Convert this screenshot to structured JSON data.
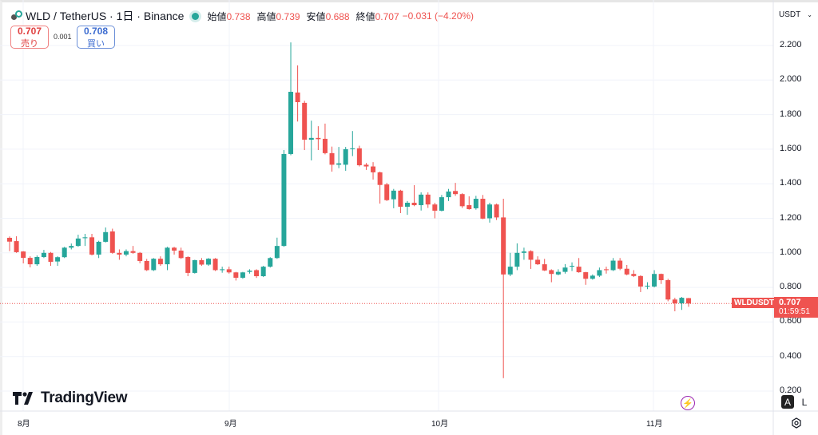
{
  "header": {
    "symbol": "WLD",
    "quote": "TetherUS",
    "interval": "1日",
    "exchange": "Binance",
    "sep1": " / ",
    "sep2": " · ",
    "sep3": " · ",
    "open_label": "始値",
    "open": "0.738",
    "high_label": "高値",
    "high": "0.739",
    "low_label": "安値",
    "low": "0.688",
    "close_label": "終値",
    "close": "0.707",
    "change": "−0.031 (−4.20%)"
  },
  "trade": {
    "sell_price": "0.707",
    "sell_label": "売り",
    "spread": "0.001",
    "buy_price": "0.708",
    "buy_label": "買い"
  },
  "currency_selector": "USDT",
  "price_tag": {
    "symbol": "WLDUSDT",
    "price": "0.707",
    "countdown": "01:59:51"
  },
  "branding": "TradingView",
  "scale_buttons": {
    "auto": "A",
    "log": "L"
  },
  "colors": {
    "up": "#26a69a",
    "down": "#ef5350",
    "accent": "#9c27b0"
  },
  "chart_data": {
    "type": "candlestick",
    "y_ticks": [
      "2.200",
      "2.000",
      "1.800",
      "1.600",
      "1.400",
      "1.200",
      "1.000",
      "0.800",
      "0.600",
      "0.400",
      "0.200"
    ],
    "ylim": [
      0.2,
      2.2
    ],
    "x_ticks": [
      "8月",
      "9月",
      "10月",
      "11月"
    ],
    "grid": true,
    "last_price": 0.707,
    "ohlc": [
      [
        1.087,
        1.095,
        1.01,
        1.065
      ],
      [
        1.068,
        1.096,
        1.0,
        1.004
      ],
      [
        1.008,
        1.01,
        0.939,
        0.971
      ],
      [
        0.971,
        0.98,
        0.916,
        0.934
      ],
      [
        0.934,
        0.985,
        0.925,
        0.976
      ],
      [
        0.976,
        1.017,
        0.97,
        1.0
      ],
      [
        1.0,
        1.005,
        0.925,
        0.948
      ],
      [
        0.95,
        0.98,
        0.925,
        0.975
      ],
      [
        0.975,
        1.035,
        0.97,
        1.03
      ],
      [
        1.03,
        1.054,
        1.02,
        1.04
      ],
      [
        1.04,
        1.105,
        1.035,
        1.083
      ],
      [
        1.085,
        1.11,
        1.04,
        1.09
      ],
      [
        1.09,
        1.11,
        0.985,
        0.99
      ],
      [
        0.99,
        1.07,
        0.97,
        1.064
      ],
      [
        1.064,
        1.147,
        1.06,
        1.12
      ],
      [
        1.124,
        1.14,
        0.995,
        1.0
      ],
      [
        1.0,
        1.02,
        0.96,
        0.99
      ],
      [
        0.99,
        1.02,
        0.98,
        1.01
      ],
      [
        1.01,
        1.04,
        0.995,
        1.0
      ],
      [
        1.0,
        1.005,
        0.94,
        0.953
      ],
      [
        0.953,
        0.965,
        0.895,
        0.9
      ],
      [
        0.9,
        0.97,
        0.895,
        0.966
      ],
      [
        0.966,
        0.98,
        0.925,
        0.934
      ],
      [
        0.934,
        1.035,
        0.9,
        1.03
      ],
      [
        1.03,
        1.035,
        0.99,
        1.013
      ],
      [
        1.013,
        1.03,
        0.965,
        0.97
      ],
      [
        0.976,
        0.98,
        0.865,
        0.884
      ],
      [
        0.884,
        0.96,
        0.88,
        0.958
      ],
      [
        0.958,
        0.97,
        0.925,
        0.932
      ],
      [
        0.932,
        0.97,
        0.925,
        0.966
      ],
      [
        0.966,
        0.97,
        0.895,
        0.9
      ],
      [
        0.9,
        0.92,
        0.885,
        0.905
      ],
      [
        0.905,
        0.92,
        0.88,
        0.887
      ],
      [
        0.887,
        0.89,
        0.84,
        0.856
      ],
      [
        0.856,
        0.89,
        0.85,
        0.887
      ],
      [
        0.89,
        0.905,
        0.88,
        0.897
      ],
      [
        0.9,
        0.905,
        0.855,
        0.865
      ],
      [
        0.865,
        0.925,
        0.86,
        0.92
      ],
      [
        0.92,
        0.975,
        0.915,
        0.97
      ],
      [
        0.97,
        1.088,
        0.965,
        1.04
      ],
      [
        1.04,
        1.595,
        1.035,
        1.572
      ],
      [
        1.572,
        2.218,
        1.565,
        1.932
      ],
      [
        1.928,
        2.085,
        1.76,
        1.872
      ],
      [
        1.868,
        1.88,
        1.595,
        1.655
      ],
      [
        1.655,
        1.765,
        1.535,
        1.665
      ],
      [
        1.665,
        1.733,
        1.595,
        1.658
      ],
      [
        1.66,
        1.748,
        1.57,
        1.577
      ],
      [
        1.577,
        1.615,
        1.47,
        1.51
      ],
      [
        1.51,
        1.613,
        1.49,
        1.518
      ],
      [
        1.51,
        1.613,
        1.475,
        1.6
      ],
      [
        1.6,
        1.705,
        1.56,
        1.605
      ],
      [
        1.605,
        1.62,
        1.5,
        1.507
      ],
      [
        1.51,
        1.52,
        1.48,
        1.5
      ],
      [
        1.5,
        1.525,
        1.424,
        1.466
      ],
      [
        1.466,
        1.47,
        1.285,
        1.393
      ],
      [
        1.396,
        1.405,
        1.3,
        1.305
      ],
      [
        1.31,
        1.37,
        1.258,
        1.36
      ],
      [
        1.36,
        1.365,
        1.23,
        1.267
      ],
      [
        1.267,
        1.3,
        1.22,
        1.29
      ],
      [
        1.29,
        1.392,
        1.27,
        1.276
      ],
      [
        1.276,
        1.35,
        1.245,
        1.337
      ],
      [
        1.337,
        1.35,
        1.26,
        1.28
      ],
      [
        1.28,
        1.29,
        1.2,
        1.244
      ],
      [
        1.244,
        1.335,
        1.24,
        1.322
      ],
      [
        1.322,
        1.37,
        1.3,
        1.355
      ],
      [
        1.358,
        1.405,
        1.33,
        1.34
      ],
      [
        1.34,
        1.345,
        1.26,
        1.27
      ],
      [
        1.276,
        1.327,
        1.25,
        1.253
      ],
      [
        1.258,
        1.33,
        1.25,
        1.313
      ],
      [
        1.313,
        1.335,
        1.195,
        1.198
      ],
      [
        1.2,
        1.29,
        1.175,
        1.28
      ],
      [
        1.28,
        1.285,
        1.19,
        1.205
      ],
      [
        1.205,
        1.313,
        0.275,
        0.875
      ],
      [
        0.875,
        1.0,
        0.865,
        0.92
      ],
      [
        0.92,
        1.055,
        0.9,
        1.0
      ],
      [
        1.0,
        1.03,
        0.96,
        1.008
      ],
      [
        1.01,
        1.015,
        0.907,
        0.96
      ],
      [
        0.96,
        0.98,
        0.93,
        0.934
      ],
      [
        0.934,
        0.965,
        0.895,
        0.898
      ],
      [
        0.9,
        0.905,
        0.83,
        0.878
      ],
      [
        0.875,
        0.905,
        0.87,
        0.89
      ],
      [
        0.89,
        0.935,
        0.88,
        0.915
      ],
      [
        0.92,
        0.945,
        0.895,
        0.925
      ],
      [
        0.92,
        0.97,
        0.885,
        0.888
      ],
      [
        0.888,
        0.89,
        0.815,
        0.85
      ],
      [
        0.85,
        0.875,
        0.845,
        0.868
      ],
      [
        0.868,
        0.915,
        0.86,
        0.9
      ],
      [
        0.905,
        0.92,
        0.88,
        0.9
      ],
      [
        0.9,
        0.97,
        0.895,
        0.955
      ],
      [
        0.955,
        0.97,
        0.9,
        0.908
      ],
      [
        0.908,
        0.93,
        0.87,
        0.875
      ],
      [
        0.878,
        0.9,
        0.86,
        0.866
      ],
      [
        0.866,
        0.87,
        0.773,
        0.805
      ],
      [
        0.805,
        0.83,
        0.79,
        0.81
      ],
      [
        0.805,
        0.9,
        0.8,
        0.878
      ],
      [
        0.878,
        0.88,
        0.82,
        0.842
      ],
      [
        0.842,
        0.85,
        0.72,
        0.73
      ],
      [
        0.73,
        0.74,
        0.662,
        0.708
      ],
      [
        0.708,
        0.745,
        0.67,
        0.74
      ],
      [
        0.738,
        0.739,
        0.688,
        0.707
      ]
    ]
  }
}
